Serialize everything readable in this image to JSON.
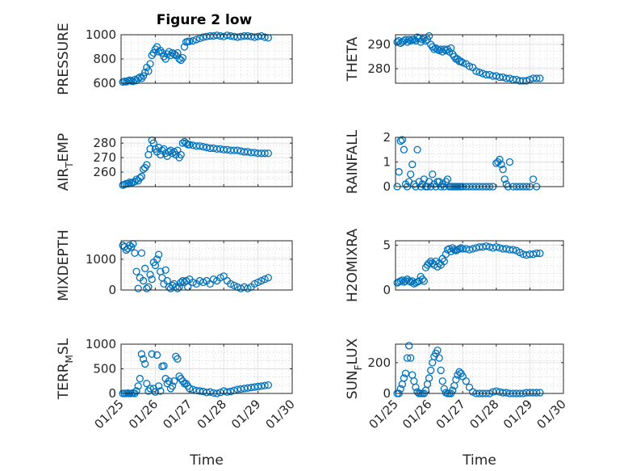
{
  "figure": {
    "title": "Figure 2 low"
  },
  "chart_data": [
    {
      "type": "scatter",
      "id": "pressure",
      "title": "Figure 2 low",
      "ylabel": "PRESSURE",
      "ylabel_parts": [
        "PRESSURE"
      ],
      "xlabel": "",
      "xlim": [
        0,
        5
      ],
      "ylim": [
        600,
        1000
      ],
      "yticks": [
        600,
        800,
        1000
      ],
      "xticks": [
        0,
        1,
        2,
        3,
        4,
        5
      ],
      "xticklabels": [],
      "color": "#0072BD",
      "x": [
        0.05,
        0.1,
        0.15,
        0.2,
        0.25,
        0.3,
        0.35,
        0.4,
        0.45,
        0.5,
        0.55,
        0.6,
        0.65,
        0.7,
        0.75,
        0.8,
        0.85,
        0.9,
        0.95,
        1.0,
        1.05,
        1.1,
        1.15,
        1.2,
        1.25,
        1.3,
        1.35,
        1.4,
        1.45,
        1.5,
        1.55,
        1.6,
        1.65,
        1.7,
        1.75,
        1.8,
        1.85,
        1.9,
        1.95,
        2.0,
        2.1,
        2.2,
        2.3,
        2.4,
        2.5,
        2.6,
        2.7,
        2.8,
        2.9,
        3.0,
        3.1,
        3.2,
        3.3,
        3.4,
        3.5,
        3.6,
        3.7,
        3.8,
        3.9,
        4.0,
        4.1,
        4.2,
        4.3
      ],
      "y": [
        610,
        615,
        612,
        620,
        625,
        618,
        615,
        630,
        622,
        640,
        650,
        640,
        660,
        690,
        730,
        700,
        760,
        830,
        850,
        880,
        900,
        860,
        870,
        850,
        820,
        800,
        840,
        860,
        830,
        850,
        840,
        830,
        850,
        800,
        790,
        810,
        900,
        940,
        945,
        945,
        950,
        960,
        970,
        980,
        985,
        990,
        990,
        995,
        990,
        985,
        995,
        990,
        985,
        980,
        985,
        990,
        990,
        985,
        980,
        985,
        990,
        980,
        975
      ]
    },
    {
      "type": "scatter",
      "id": "theta",
      "ylabel": "THETA",
      "ylabel_parts": [
        "THETA"
      ],
      "xlabel": "",
      "xlim": [
        0,
        5
      ],
      "ylim": [
        274,
        294
      ],
      "yticks": [
        280,
        290
      ],
      "xticks": [
        0,
        1,
        2,
        3,
        4,
        5
      ],
      "xticklabels": [],
      "color": "#0072BD",
      "x": [
        0.05,
        0.1,
        0.15,
        0.2,
        0.25,
        0.3,
        0.35,
        0.4,
        0.45,
        0.5,
        0.55,
        0.6,
        0.65,
        0.7,
        0.75,
        0.8,
        0.85,
        0.9,
        0.95,
        1.0,
        1.05,
        1.1,
        1.15,
        1.2,
        1.25,
        1.3,
        1.35,
        1.4,
        1.45,
        1.5,
        1.55,
        1.6,
        1.65,
        1.7,
        1.75,
        1.8,
        1.85,
        1.9,
        1.95,
        2.0,
        2.1,
        2.2,
        2.3,
        2.4,
        2.5,
        2.6,
        2.7,
        2.8,
        2.9,
        3.0,
        3.1,
        3.2,
        3.3,
        3.4,
        3.5,
        3.6,
        3.7,
        3.8,
        3.9,
        4.0,
        4.1,
        4.2,
        4.3
      ],
      "y": [
        291,
        291.5,
        290.5,
        291,
        291.5,
        292,
        291,
        292,
        291.5,
        292,
        292,
        291.5,
        293,
        292.5,
        291,
        292,
        292.5,
        291.5,
        292,
        293.5,
        290,
        289,
        288,
        288.5,
        288,
        287.5,
        288,
        287,
        288,
        287.5,
        288,
        287,
        288.5,
        286,
        285,
        284,
        284,
        283,
        283,
        282.5,
        282,
        281,
        280.5,
        279,
        278.5,
        278,
        277.5,
        277.5,
        277,
        277,
        276.5,
        276.5,
        276,
        276,
        275.5,
        275.5,
        275,
        275,
        275,
        275.5,
        276,
        276,
        276
      ]
    },
    {
      "type": "scatter",
      "id": "airtemp",
      "ylabel": "AIR_TEMP",
      "ylabel_parts": [
        "AIR",
        "T",
        "EMP"
      ],
      "xlabel": "",
      "xlim": [
        0,
        5
      ],
      "ylim": [
        250,
        284
      ],
      "yticks": [
        260,
        270,
        280
      ],
      "xticks": [
        0,
        1,
        2,
        3,
        4,
        5
      ],
      "xticklabels": [],
      "color": "#0072BD",
      "x": [
        0.05,
        0.1,
        0.15,
        0.2,
        0.25,
        0.3,
        0.35,
        0.4,
        0.45,
        0.5,
        0.55,
        0.6,
        0.65,
        0.7,
        0.75,
        0.8,
        0.85,
        0.9,
        0.95,
        1.0,
        1.05,
        1.1,
        1.15,
        1.2,
        1.25,
        1.3,
        1.35,
        1.4,
        1.45,
        1.5,
        1.55,
        1.6,
        1.65,
        1.7,
        1.75,
        1.8,
        1.85,
        1.9,
        1.95,
        2.0,
        2.1,
        2.2,
        2.3,
        2.4,
        2.5,
        2.6,
        2.7,
        2.8,
        2.9,
        3.0,
        3.1,
        3.2,
        3.3,
        3.4,
        3.5,
        3.6,
        3.7,
        3.8,
        3.9,
        4.0,
        4.1,
        4.2,
        4.3
      ],
      "y": [
        251,
        251.5,
        252,
        252,
        253,
        252.5,
        253,
        253.5,
        255,
        254,
        256,
        257,
        262,
        263,
        265,
        272,
        276,
        282,
        280,
        276,
        274,
        277,
        272,
        275,
        276,
        273,
        271,
        274,
        275,
        273,
        274,
        272,
        275,
        270,
        272,
        280,
        281,
        280,
        279,
        279,
        278.5,
        278,
        278,
        277.5,
        277,
        276.5,
        276.5,
        276,
        276,
        275.5,
        275.5,
        275,
        275,
        275,
        274.5,
        274,
        274,
        273.5,
        273.5,
        273,
        273,
        273,
        273
      ]
    },
    {
      "type": "scatter",
      "id": "rainfall",
      "ylabel": "RAINFALL",
      "ylabel_parts": [
        "RAINFALL"
      ],
      "xlabel": "",
      "xlim": [
        0,
        5
      ],
      "ylim": [
        0,
        2
      ],
      "yticks": [
        0,
        1,
        2
      ],
      "xticks": [
        0,
        1,
        2,
        3,
        4,
        5
      ],
      "xticklabels": [],
      "color": "#0072BD",
      "x": [
        0.05,
        0.1,
        0.15,
        0.2,
        0.25,
        0.3,
        0.35,
        0.4,
        0.45,
        0.5,
        0.55,
        0.6,
        0.65,
        0.7,
        0.75,
        0.8,
        0.85,
        0.9,
        0.95,
        1.0,
        1.05,
        1.1,
        1.15,
        1.2,
        1.25,
        1.3,
        1.35,
        1.4,
        1.45,
        1.5,
        1.55,
        1.6,
        1.65,
        1.7,
        1.75,
        1.8,
        1.85,
        1.9,
        1.95,
        2.0,
        2.1,
        2.2,
        2.3,
        2.4,
        2.5,
        2.6,
        2.7,
        2.8,
        2.9,
        3.0,
        3.05,
        3.1,
        3.15,
        3.2,
        3.25,
        3.3,
        3.35,
        3.4,
        3.5,
        3.6,
        3.7,
        3.8,
        3.9,
        4.0,
        4.1,
        4.2
      ],
      "y": [
        0,
        0.6,
        1.85,
        1.9,
        1.5,
        0.1,
        0,
        0.2,
        0.5,
        0.9,
        0.1,
        0,
        1.5,
        0.2,
        0,
        0.1,
        0.3,
        0,
        0,
        0.2,
        0,
        0.5,
        0.1,
        0,
        0.2,
        0.2,
        0,
        0.1,
        0,
        0.2,
        0.3,
        0,
        0,
        0,
        0,
        0,
        0,
        0,
        0,
        0,
        0,
        0,
        0,
        0,
        0,
        0,
        0,
        0,
        0,
        0.95,
        1.0,
        1.1,
        0.9,
        0.7,
        0.3,
        0.1,
        0,
        1.0,
        0,
        0,
        0,
        0,
        0,
        0,
        0.3,
        0
      ]
    },
    {
      "type": "scatter",
      "id": "mixdepth",
      "ylabel": "MIXDEPTH",
      "ylabel_parts": [
        "MIXDEPTH"
      ],
      "xlabel": "",
      "xlim": [
        0,
        5
      ],
      "ylim": [
        0,
        1600
      ],
      "yticks": [
        0,
        1000
      ],
      "xticks": [
        0,
        1,
        2,
        3,
        4,
        5
      ],
      "xticklabels": [],
      "color": "#0072BD",
      "x": [
        0.05,
        0.1,
        0.15,
        0.2,
        0.25,
        0.3,
        0.35,
        0.4,
        0.45,
        0.5,
        0.55,
        0.6,
        0.65,
        0.7,
        0.75,
        0.8,
        0.85,
        0.9,
        0.95,
        1.0,
        1.05,
        1.1,
        1.15,
        1.2,
        1.25,
        1.3,
        1.35,
        1.4,
        1.45,
        1.5,
        1.55,
        1.6,
        1.65,
        1.7,
        1.75,
        1.8,
        1.85,
        1.9,
        1.95,
        2.0,
        2.1,
        2.2,
        2.3,
        2.4,
        2.5,
        2.6,
        2.7,
        2.8,
        2.9,
        3.0,
        3.1,
        3.2,
        3.3,
        3.4,
        3.5,
        3.6,
        3.7,
        3.8,
        3.9,
        4.0,
        4.1,
        4.2,
        4.3
      ],
      "y": [
        1450,
        1400,
        1300,
        1350,
        1450,
        1400,
        1500,
        1200,
        600,
        50,
        400,
        1200,
        300,
        700,
        50,
        100,
        500,
        350,
        900,
        800,
        1000,
        1150,
        600,
        400,
        200,
        650,
        300,
        100,
        50,
        150,
        200,
        100,
        50,
        100,
        250,
        300,
        250,
        300,
        100,
        350,
        250,
        200,
        300,
        250,
        300,
        200,
        350,
        300,
        400,
        450,
        300,
        200,
        150,
        100,
        50,
        100,
        50,
        100,
        200,
        250,
        300,
        350,
        400
      ]
    },
    {
      "type": "scatter",
      "id": "h2omixra",
      "ylabel": "H2OMIXRA",
      "ylabel_parts": [
        "H2OMIXRA"
      ],
      "xlabel": "",
      "xlim": [
        0,
        5
      ],
      "ylim": [
        0,
        5.5
      ],
      "yticks": [
        0,
        5
      ],
      "xticks": [
        0,
        1,
        2,
        3,
        4,
        5
      ],
      "xticklabels": [],
      "color": "#0072BD",
      "x": [
        0.05,
        0.1,
        0.15,
        0.2,
        0.25,
        0.3,
        0.35,
        0.4,
        0.45,
        0.5,
        0.55,
        0.6,
        0.65,
        0.7,
        0.75,
        0.8,
        0.85,
        0.9,
        0.95,
        1.0,
        1.05,
        1.1,
        1.15,
        1.2,
        1.25,
        1.3,
        1.35,
        1.4,
        1.45,
        1.5,
        1.55,
        1.6,
        1.65,
        1.7,
        1.75,
        1.8,
        1.85,
        1.9,
        1.95,
        2.0,
        2.1,
        2.2,
        2.3,
        2.4,
        2.5,
        2.6,
        2.7,
        2.8,
        2.9,
        3.0,
        3.1,
        3.2,
        3.3,
        3.4,
        3.5,
        3.6,
        3.7,
        3.8,
        3.9,
        4.0,
        4.1,
        4.2,
        4.3
      ],
      "y": [
        0.8,
        0.9,
        1.0,
        1.1,
        0.9,
        1.0,
        1.2,
        1.0,
        0.9,
        1.0,
        0.7,
        0.8,
        0.9,
        1.0,
        1.5,
        1.2,
        1.0,
        2.5,
        2.8,
        3.0,
        3.2,
        3.0,
        2.8,
        3.2,
        2.6,
        3.0,
        2.8,
        3.5,
        3.2,
        4.0,
        4.5,
        4.6,
        4.3,
        4.7,
        4.5,
        4.4,
        4.5,
        4.6,
        4.7,
        4.6,
        4.6,
        4.5,
        4.6,
        4.7,
        4.8,
        4.8,
        4.9,
        4.8,
        4.7,
        4.8,
        4.7,
        4.6,
        4.6,
        4.5,
        4.5,
        4.4,
        4.2,
        4.0,
        3.9,
        4.0,
        4.0,
        4.1,
        4.1
      ]
    },
    {
      "type": "scatter",
      "id": "terrmsl",
      "ylabel": "TERR_MSL",
      "ylabel_parts": [
        "TERR",
        "M",
        "SL"
      ],
      "xlabel": "Time",
      "xlim": [
        0,
        5
      ],
      "ylim": [
        0,
        1000
      ],
      "yticks": [
        0,
        500,
        1000
      ],
      "xticks": [
        0,
        1,
        2,
        3,
        4,
        5
      ],
      "xticklabels": [
        "01/25",
        "01/26",
        "01/27",
        "01/28",
        "01/29",
        "01/30"
      ],
      "color": "#0072BD",
      "x": [
        0.05,
        0.1,
        0.15,
        0.2,
        0.25,
        0.3,
        0.35,
        0.4,
        0.45,
        0.5,
        0.55,
        0.6,
        0.65,
        0.7,
        0.75,
        0.8,
        0.85,
        0.9,
        0.95,
        1.0,
        1.05,
        1.1,
        1.15,
        1.2,
        1.25,
        1.3,
        1.35,
        1.4,
        1.45,
        1.5,
        1.55,
        1.6,
        1.65,
        1.7,
        1.75,
        1.8,
        1.85,
        1.9,
        1.95,
        2.0,
        2.1,
        2.2,
        2.3,
        2.4,
        2.5,
        2.6,
        2.7,
        2.8,
        2.9,
        3.0,
        3.1,
        3.2,
        3.3,
        3.4,
        3.5,
        3.6,
        3.7,
        3.8,
        3.9,
        4.0,
        4.1,
        4.2,
        4.3
      ],
      "y": [
        0,
        0,
        0,
        5,
        0,
        0,
        10,
        0,
        50,
        150,
        300,
        800,
        700,
        600,
        200,
        50,
        100,
        800,
        100,
        30,
        780,
        150,
        50,
        550,
        560,
        300,
        200,
        250,
        100,
        150,
        250,
        750,
        700,
        350,
        300,
        250,
        200,
        200,
        150,
        100,
        80,
        60,
        50,
        40,
        20,
        30,
        10,
        0,
        20,
        50,
        30,
        40,
        60,
        80,
        90,
        100,
        110,
        120,
        130,
        140,
        150,
        160,
        170
      ]
    },
    {
      "type": "scatter",
      "id": "sunflux",
      "ylabel": "SUN_FLUX",
      "ylabel_parts": [
        "SUN",
        "F",
        "LUX"
      ],
      "xlabel": "Time",
      "xlim": [
        0,
        5
      ],
      "ylim": [
        0,
        320
      ],
      "yticks": [
        0,
        200
      ],
      "xticks": [
        0,
        1,
        2,
        3,
        4,
        5
      ],
      "xticklabels": [
        "01/25",
        "01/26",
        "01/27",
        "01/28",
        "01/29",
        "01/30"
      ],
      "color": "#0072BD",
      "x": [
        0.05,
        0.1,
        0.15,
        0.2,
        0.25,
        0.3,
        0.35,
        0.4,
        0.45,
        0.5,
        0.55,
        0.6,
        0.65,
        0.7,
        0.75,
        0.8,
        0.85,
        0.9,
        0.95,
        1.0,
        1.05,
        1.1,
        1.15,
        1.2,
        1.25,
        1.3,
        1.35,
        1.4,
        1.45,
        1.5,
        1.55,
        1.6,
        1.65,
        1.7,
        1.75,
        1.8,
        1.85,
        1.9,
        1.95,
        2.0,
        2.1,
        2.2,
        2.3,
        2.4,
        2.5,
        2.6,
        2.7,
        2.8,
        2.9,
        3.0,
        3.1,
        3.2,
        3.3,
        3.4,
        3.5,
        3.6,
        3.7,
        3.8,
        3.9,
        4.0,
        4.1,
        4.2,
        4.3
      ],
      "y": [
        0,
        0,
        30,
        60,
        100,
        130,
        230,
        310,
        230,
        120,
        80,
        40,
        10,
        0,
        0,
        0,
        0,
        20,
        60,
        100,
        150,
        200,
        240,
        260,
        280,
        230,
        150,
        80,
        30,
        5,
        0,
        0,
        0,
        20,
        50,
        90,
        120,
        140,
        130,
        110,
        80,
        40,
        10,
        0,
        0,
        0,
        0,
        0,
        10,
        15,
        10,
        5,
        5,
        0,
        0,
        0,
        0,
        0,
        5,
        5,
        5,
        5,
        5
      ]
    }
  ]
}
